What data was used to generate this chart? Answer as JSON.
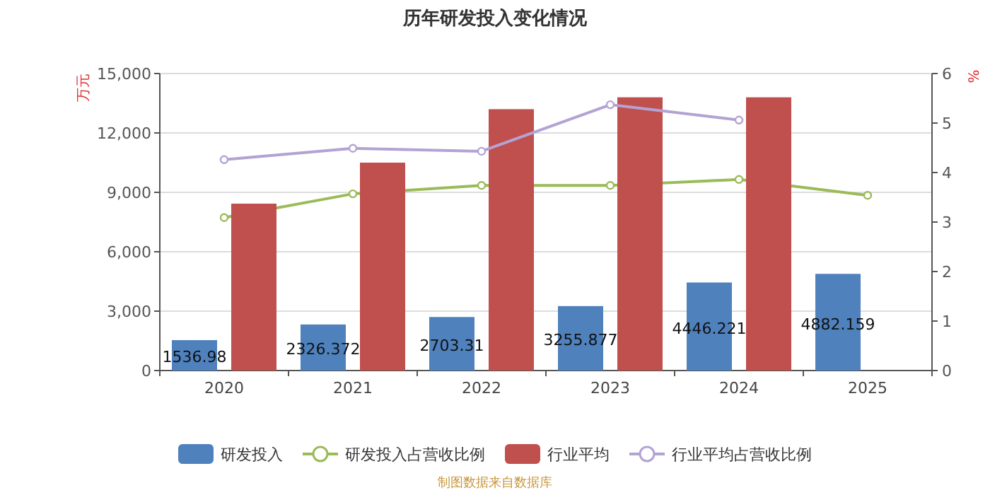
{
  "chart_data": {
    "type": "bar",
    "title": "历年研发投入变化情况",
    "ylabel": "万元",
    "y2label": "%",
    "categories": [
      "2020",
      "2021",
      "2022",
      "2023",
      "2024",
      "2025"
    ],
    "series": [
      {
        "name": "研发投入",
        "color": "#4f81bd",
        "values": [
          1536.98,
          2326.372,
          2703.31,
          3255.877,
          4446.221,
          4882.159
        ],
        "value_labels": [
          "1536.98",
          "2326.372",
          "2703.31",
          "3255.877",
          "4446.221",
          "4882.159"
        ]
      },
      {
        "name": "研发投入占营收比例",
        "type": "line",
        "axis": "y2",
        "color": "#9bbb59",
        "values": [
          3.09,
          3.57,
          3.74,
          3.74,
          3.86,
          3.54
        ]
      },
      {
        "name": "行业平均",
        "color": "#c0504d",
        "values": [
          8430,
          10500,
          13200,
          13800,
          13800,
          null
        ]
      },
      {
        "name": "行业平均占营收比例",
        "type": "line",
        "axis": "y2",
        "color": "#b3a2d4",
        "values": [
          4.26,
          4.49,
          4.43,
          5.37,
          5.06,
          null
        ]
      }
    ],
    "ylim": [
      0,
      15000
    ],
    "yticks": [
      0,
      {
        "value": 3000,
        "label": "3,000"
      },
      {
        "value": 6000,
        "label": "6,000"
      },
      {
        "value": 9000,
        "label": "9,000"
      },
      {
        "value": 12000,
        "label": "12,000"
      },
      {
        "value": 15000,
        "label": "15,000"
      }
    ],
    "y2lim": [
      0,
      6
    ],
    "y2ticks": [
      0,
      1,
      2,
      3,
      4,
      5,
      6
    ],
    "grid": "y",
    "legend": "bottom",
    "marker": "circle",
    "annotations": [
      "制图数据来自数据库"
    ]
  }
}
